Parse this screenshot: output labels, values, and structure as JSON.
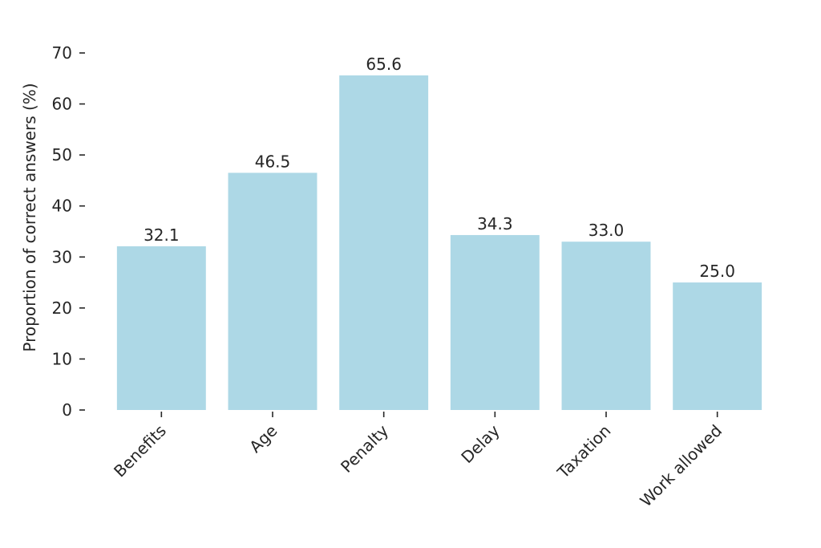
{
  "chart_data": {
    "type": "bar",
    "categories": [
      "Benefits",
      "Age",
      "Penalty",
      "Delay",
      "Taxation",
      "Work allowed"
    ],
    "values": [
      32.1,
      46.5,
      65.6,
      34.3,
      33.0,
      25.0
    ],
    "value_labels": [
      "32.1",
      "46.5",
      "65.6",
      "34.3",
      "33.0",
      "25.0"
    ],
    "title": "",
    "xlabel": "",
    "ylabel": "Proportion of correct answers (%)",
    "ylim": [
      0,
      70
    ],
    "yticks": [
      0,
      10,
      20,
      30,
      40,
      50,
      60,
      70
    ],
    "grid": false,
    "legend": "none",
    "bar_color": "#add8e6",
    "text_color": "#262626"
  }
}
